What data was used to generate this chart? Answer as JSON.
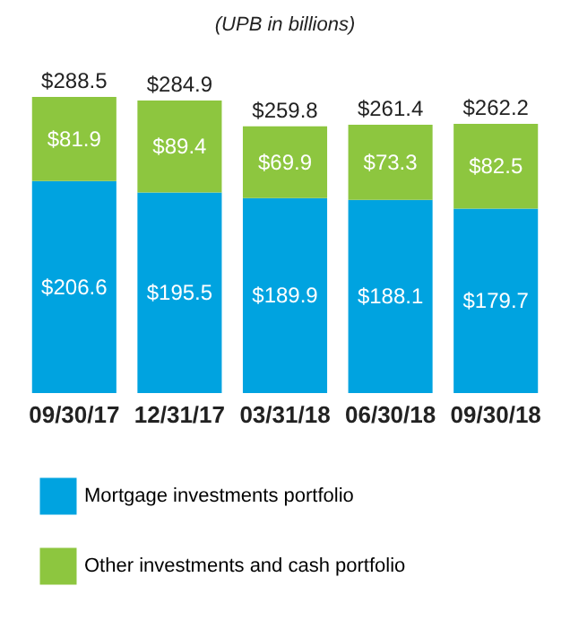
{
  "chart_data": {
    "type": "bar",
    "subtitle": "(UPB in billions)",
    "stacked": true,
    "categories": [
      "09/30/17",
      "12/31/17",
      "03/31/18",
      "06/30/18",
      "09/30/18"
    ],
    "series": [
      {
        "name": "Mortgage investments portfolio",
        "color": "#00a3e0",
        "values": [
          206.6,
          195.5,
          189.9,
          188.1,
          179.7
        ],
        "value_labels": [
          "$206.6",
          "$195.5",
          "$189.9",
          "$188.1",
          "$179.7"
        ]
      },
      {
        "name": "Other investments and cash portfolio",
        "color": "#8dc63f",
        "values": [
          81.9,
          89.4,
          69.9,
          73.3,
          82.5
        ],
        "value_labels": [
          "$81.9",
          "$89.4",
          "$69.9",
          "$73.3",
          "$82.5"
        ]
      }
    ],
    "totals": [
      "$288.5",
      "$284.9",
      "$259.8",
      "$261.4",
      "$262.2"
    ],
    "legend": "bottom",
    "grid": false
  }
}
